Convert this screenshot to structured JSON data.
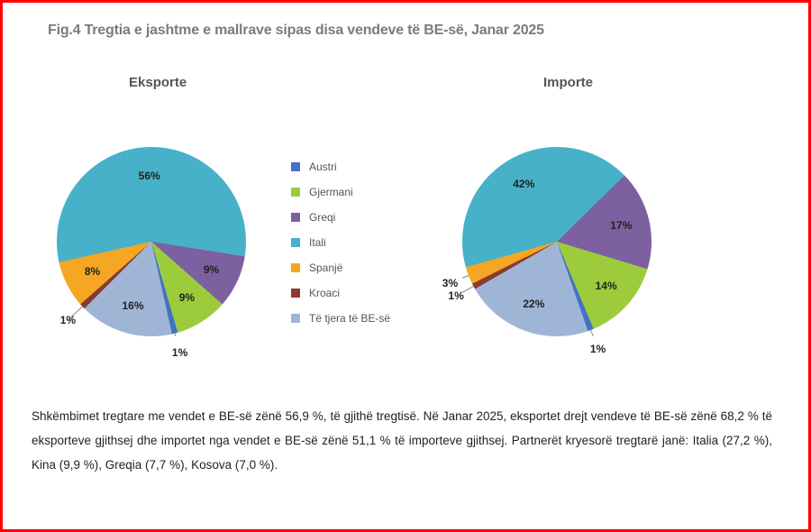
{
  "figure_title": "Fig.4 Tregtia e jashtme  e mallrave sipas disa vendeve  të BE-së, Janar 2025",
  "exports_title": "Eksporte",
  "imports_title": "Importe",
  "legend": [
    {
      "label": "Austri",
      "color": "#4472c4"
    },
    {
      "label": "Gjermani",
      "color": "#9ccc3c"
    },
    {
      "label": "Greqi",
      "color": "#7d60a0"
    },
    {
      "label": "Itali",
      "color": "#46b1c9"
    },
    {
      "label": "Spanjë",
      "color": "#f5a623"
    },
    {
      "label": "Kroaci",
      "color": "#8b3a2f"
    },
    {
      "label": "Të tjera të BE-së",
      "color": "#9fb5d6"
    }
  ],
  "exports": {
    "type": "pie",
    "start_angle_deg": -135,
    "slices": [
      {
        "label": "1%",
        "value": 1,
        "color": "#8b3a2f"
      },
      {
        "label": "8%",
        "value": 8,
        "color": "#f5a623"
      },
      {
        "label": "56%",
        "value": 56,
        "color": "#46b1c9"
      },
      {
        "label": "9%",
        "value": 9,
        "color": "#7d60a0"
      },
      {
        "label": "9%",
        "value": 9,
        "color": "#9ccc3c"
      },
      {
        "label": "1%",
        "value": 1,
        "color": "#4472c4"
      },
      {
        "label": "16%",
        "value": 16,
        "color": "#9fb5d6"
      }
    ]
  },
  "imports": {
    "type": "pie",
    "start_angle_deg": -120,
    "slices": [
      {
        "label": "1%",
        "value": 1,
        "color": "#8b3a2f"
      },
      {
        "label": "3%",
        "value": 3,
        "color": "#f5a623"
      },
      {
        "label": "42%",
        "value": 42,
        "color": "#46b1c9"
      },
      {
        "label": "17%",
        "value": 17,
        "color": "#7d60a0"
      },
      {
        "label": "14%",
        "value": 14,
        "color": "#9ccc3c"
      },
      {
        "label": "1%",
        "value": 1,
        "color": "#4472c4"
      },
      {
        "label": "22%",
        "value": 22,
        "color": "#9fb5d6"
      }
    ]
  },
  "body_text": "Shkëmbimet tregtare me vendet e BE-së zënë 56,9 %, të gjithë tregtisë. Në Janar 2025, eksportet drejt vendeve të  BE-së zënë 68,2 % të eksporteve gjithsej dhe importet nga vendet e BE-së zënë 51,1 % të importeve gjithsej. Partnerët kryesorë tregtarë janë: Italia (27,2 %), Kina (9,9 %), Greqia (7,7 %), Kosova (7,0 %).",
  "label_fontsize": 12,
  "title_color": "#7b7b7b",
  "subtitle_color": "#555555",
  "text_color": "#222222",
  "leader_color": "#888888"
}
